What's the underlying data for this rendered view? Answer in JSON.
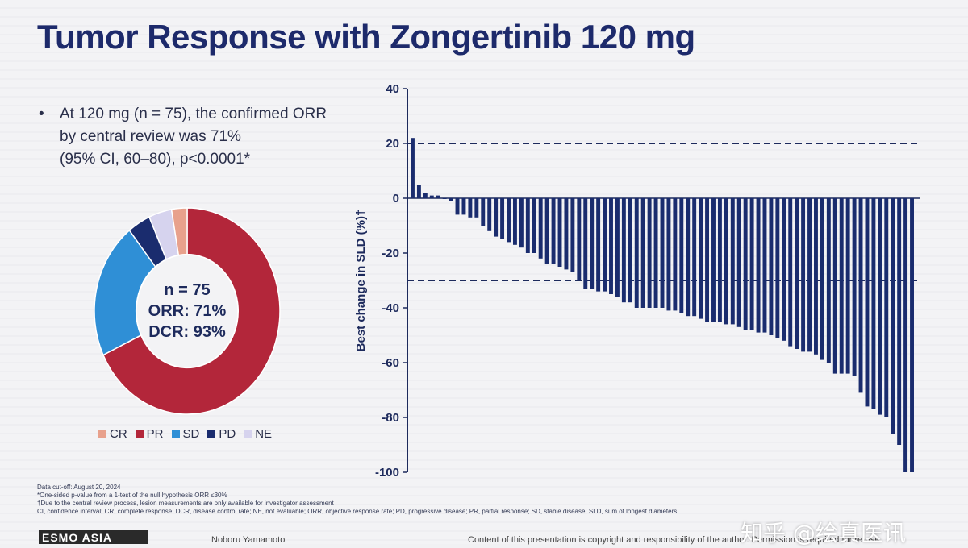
{
  "slide": {
    "title": "Tumor Response with Zongertinib 120 mg",
    "bullet": {
      "symbol": "•",
      "lines": [
        "At 120 mg (n = 75), the confirmed ORR",
        "by central review was 71%",
        "(95% CI, 60–80), p<0.0001*"
      ]
    },
    "footnotes": [
      "Data cut-off: August 20, 2024",
      "*One-sided p-value from a 1-test of the null hypothesis ORR ≤30%",
      "†Due to the central review process, lesion measurements are only available for investigator assessment",
      "CI, confidence interval; CR, complete response; DCR, disease control rate; NE, not evaluable; ORR, objective response rate; PD, progressive disease; PR, partial response; SD, stable disease; SLD, sum of longest diameters"
    ],
    "footer": {
      "logo": "ESMO ASIA",
      "presenter": "Noboru Yamamoto",
      "copyright": "Content of this presentation is copyright and responsibility of the author. Permission is required for re-use."
    },
    "watermark": "知乎 @绘真医讯"
  },
  "chart_data": [
    {
      "type": "pie",
      "variant": "donut",
      "center_text": [
        "n = 75",
        "ORR: 71%",
        "DCR: 93%"
      ],
      "slices": [
        {
          "label": "CR",
          "value": 2.7,
          "color": "#e8a18c"
        },
        {
          "label": "PR",
          "value": 68.0,
          "color": "#b3263a"
        },
        {
          "label": "SD",
          "value": 21.3,
          "color": "#2f8fd6"
        },
        {
          "label": "PD",
          "value": 4.0,
          "color": "#1a2c6e"
        },
        {
          "label": "NE",
          "value": 4.0,
          "color": "#d6d3ee"
        }
      ],
      "legend": [
        "CR",
        "PR",
        "SD",
        "PD",
        "NE"
      ],
      "legend_position": "bottom"
    },
    {
      "type": "bar",
      "subtype": "waterfall",
      "ylabel": "Best change in SLD (%)†",
      "ylim": [
        -100,
        40
      ],
      "yticks": [
        40,
        20,
        0,
        -20,
        -40,
        -60,
        -80,
        -100
      ],
      "reference_lines": [
        20,
        -30
      ],
      "bar_color": "#1a2c6e",
      "values": [
        22,
        5,
        2,
        1,
        1,
        0,
        -1,
        -6,
        -6,
        -7,
        -7,
        -10,
        -12,
        -14,
        -15,
        -16,
        -17,
        -18,
        -20,
        -20,
        -22,
        -24,
        -24,
        -25,
        -26,
        -27,
        -30,
        -33,
        -33,
        -34,
        -34,
        -35,
        -36,
        -38,
        -38,
        -40,
        -40,
        -40,
        -40,
        -40,
        -41,
        -41,
        -42,
        -43,
        -43,
        -44,
        -45,
        -45,
        -45,
        -46,
        -46,
        -47,
        -48,
        -48,
        -49,
        -49,
        -50,
        -51,
        -52,
        -54,
        -55,
        -56,
        -56,
        -57,
        -59,
        -60,
        -64,
        -64,
        -64,
        -65,
        -71,
        -76,
        -77,
        -79,
        -80,
        -86,
        -90,
        -100,
        -100
      ]
    }
  ]
}
